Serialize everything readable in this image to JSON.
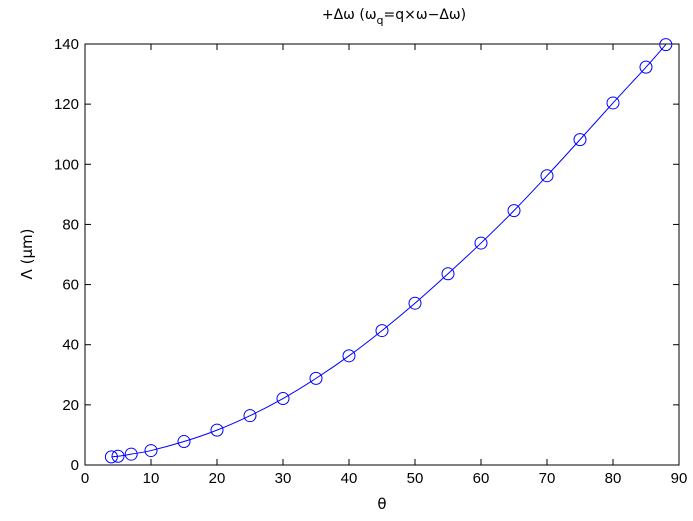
{
  "chart_data": {
    "type": "line",
    "title_parts": [
      "+Δω (ω",
      "q",
      "=q×ω−Δω)"
    ],
    "xlabel": "θ",
    "ylabel": "Λ (μm)",
    "xlim": [
      0,
      90
    ],
    "ylim": [
      0,
      140
    ],
    "xticks": [
      "0",
      "10",
      "20",
      "30",
      "40",
      "50",
      "60",
      "70",
      "80",
      "90"
    ],
    "yticks": [
      "0",
      "20",
      "40",
      "60",
      "80",
      "100",
      "120",
      "140"
    ],
    "grid": false,
    "legend": "none",
    "colors": {
      "series": "#0000ff",
      "axes": "#000000"
    },
    "series": [
      {
        "marker": "circle",
        "line": "solid",
        "x": [
          4,
          5,
          7,
          10,
          15,
          20,
          25,
          30,
          35,
          40,
          45,
          50,
          55,
          60,
          65,
          70,
          75,
          80,
          85,
          88
        ],
        "y": [
          2.7,
          2.9,
          3.6,
          4.8,
          7.8,
          11.6,
          16.4,
          22.1,
          28.8,
          36.3,
          44.7,
          53.8,
          63.6,
          73.8,
          84.6,
          96.2,
          108.2,
          120.4,
          132.3,
          139.8
        ]
      }
    ]
  }
}
